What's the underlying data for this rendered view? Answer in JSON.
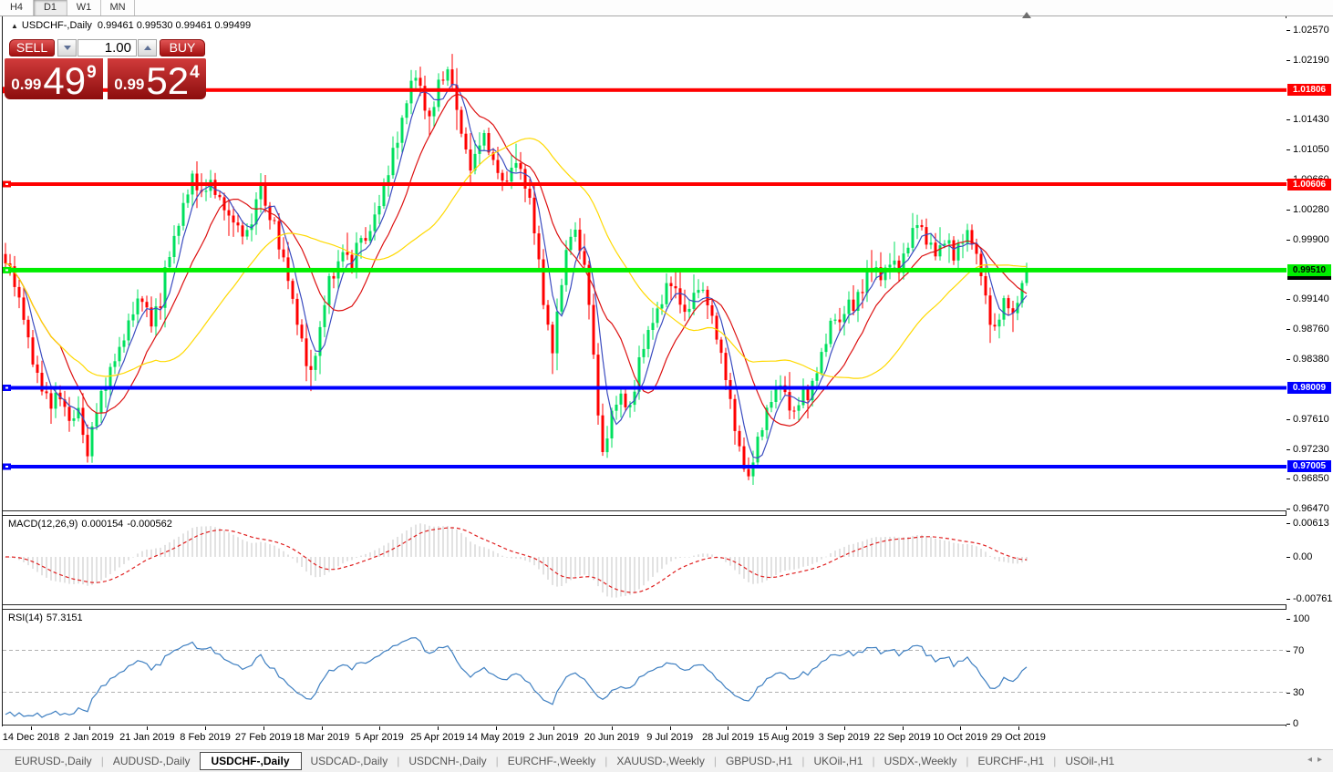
{
  "toolbar": {
    "timeframes": [
      "H4",
      "D1",
      "W1",
      "MN"
    ],
    "active": "D1"
  },
  "header": {
    "collapse_icon": "triangle",
    "symbol_line": "USDCHF-,Daily",
    "ohlc": "0.99461 0.99530 0.99461 0.99499"
  },
  "trade_panel": {
    "sell_label": "SELL",
    "buy_label": "BUY",
    "volume": "1.00",
    "sell_price_small": "0.99",
    "sell_price_big": "49",
    "sell_price_sup": "9",
    "buy_price_small": "0.99",
    "buy_price_big": "52",
    "buy_price_sup": "4"
  },
  "colors": {
    "bull": "#00e05e",
    "bear": "#ff0000",
    "ma_fast": "#3b4cc0",
    "ma_mid": "#dd1111",
    "ma_slow": "#ffd900",
    "hline_red": "#ff0000",
    "hline_green": "#00ee00",
    "hline_blue": "#0000ff",
    "macd_hist": "#c4c4c4",
    "macd_signal": "#e02020",
    "rsi_line": "#3e7fc1",
    "rsi_level": "#b0b0b0"
  },
  "chart_data": {
    "type": "candlestick",
    "symbol": "USDCHF-",
    "timeframe": "Daily",
    "bars": 225,
    "price_ticks": [
      "1.02570",
      "1.02190",
      "1.01430",
      "1.01050",
      "1.00660",
      "1.00280",
      "0.99900",
      "0.99140",
      "0.98760",
      "0.98380",
      "0.97610",
      "0.97230",
      "0.96850",
      "0.96470"
    ],
    "hlines": [
      {
        "price": "1.01806",
        "color_key": "hline_red",
        "text": "#ffffff",
        "thickness": 4
      },
      {
        "price": "1.00606",
        "color_key": "hline_red",
        "text": "#ffffff",
        "thickness": 4
      },
      {
        "price": "0.99510",
        "color_key": "hline_green",
        "text": "#000000",
        "thickness": 5
      },
      {
        "price": "0.98009",
        "color_key": "hline_blue",
        "text": "#ffffff",
        "thickness": 4
      },
      {
        "price": "0.97005",
        "color_key": "hline_blue",
        "text": "#ffffff",
        "thickness": 4
      }
    ],
    "bid_price": 0.99461,
    "moving_averages": [
      {
        "period": 5,
        "color_key": "ma_fast"
      },
      {
        "period": 13,
        "color_key": "ma_mid"
      },
      {
        "period": 34,
        "color_key": "ma_slow"
      }
    ],
    "close_anchors": [
      [
        0,
        0.9964
      ],
      [
        2,
        0.9935
      ],
      [
        4,
        0.9889
      ],
      [
        6,
        0.9836
      ],
      [
        8,
        0.9798
      ],
      [
        10,
        0.9778
      ],
      [
        12,
        0.9793
      ],
      [
        13,
        0.9775
      ],
      [
        15,
        0.9758
      ],
      [
        16,
        0.9778
      ],
      [
        17,
        0.974
      ],
      [
        18,
        0.9718
      ],
      [
        20,
        0.9775
      ],
      [
        22,
        0.9807
      ],
      [
        24,
        0.9836
      ],
      [
        26,
        0.9868
      ],
      [
        28,
        0.99
      ],
      [
        30,
        0.9918
      ],
      [
        32,
        0.9886
      ],
      [
        34,
        0.9912
      ],
      [
        35,
        0.9953
      ],
      [
        37,
        0.9991
      ],
      [
        39,
        1.003
      ],
      [
        41,
        1.0072
      ],
      [
        42,
        1.0057
      ],
      [
        43,
        1.0046
      ],
      [
        45,
        1.0065
      ],
      [
        47,
        1.0037
      ],
      [
        49,
        1.0016
      ],
      [
        51,
        1.0003
      ],
      [
        53,
        0.9996
      ],
      [
        54,
        1.0011
      ],
      [
        55,
        1.004
      ],
      [
        56,
        1.0063
      ],
      [
        57,
        1.0034
      ],
      [
        58,
        1.0019
      ],
      [
        60,
        0.9984
      ],
      [
        62,
        0.9941
      ],
      [
        64,
        0.9883
      ],
      [
        66,
        0.9831
      ],
      [
        67,
        0.9821
      ],
      [
        68,
        0.9848
      ],
      [
        69,
        0.9877
      ],
      [
        70,
        0.9912
      ],
      [
        71,
        0.9941
      ],
      [
        72,
        0.9947
      ],
      [
        73,
        0.9961
      ],
      [
        74,
        0.9976
      ],
      [
        75,
        0.9968
      ],
      [
        76,
        0.9958
      ],
      [
        77,
        0.9979
      ],
      [
        78,
        0.9993
      ],
      [
        79,
        0.9987
      ],
      [
        80,
        1.0003
      ],
      [
        81,
        1.0019
      ],
      [
        82,
        1.0037
      ],
      [
        83,
        1.0054
      ],
      [
        84,
        1.0077
      ],
      [
        85,
        1.0104
      ],
      [
        86,
        1.0119
      ],
      [
        87,
        1.0147
      ],
      [
        88,
        1.017
      ],
      [
        89,
        1.0188
      ],
      [
        90,
        1.0202
      ],
      [
        91,
        1.0181
      ],
      [
        92,
        1.0158
      ],
      [
        93,
        1.0142
      ],
      [
        94,
        1.0165
      ],
      [
        95,
        1.0185
      ],
      [
        96,
        1.0197
      ],
      [
        97,
        1.0205
      ],
      [
        98,
        1.0188
      ],
      [
        99,
        1.0154
      ],
      [
        100,
        1.013
      ],
      [
        101,
        1.0107
      ],
      [
        102,
        1.0084
      ],
      [
        103,
        1.0096
      ],
      [
        104,
        1.0115
      ],
      [
        105,
        1.0121
      ],
      [
        106,
        1.0106
      ],
      [
        107,
        1.0096
      ],
      [
        108,
        1.0078
      ],
      [
        109,
        1.0063
      ],
      [
        110,
        1.0069
      ],
      [
        111,
        1.008
      ],
      [
        112,
        1.0091
      ],
      [
        113,
        1.0078
      ],
      [
        114,
        1.0061
      ],
      [
        115,
        1.0037
      ],
      [
        116,
        1.0003
      ],
      [
        117,
        0.9958
      ],
      [
        118,
        0.9912
      ],
      [
        119,
        0.9877
      ],
      [
        120,
        0.9857
      ],
      [
        121,
        0.9894
      ],
      [
        122,
        0.9935
      ],
      [
        123,
        0.9972
      ],
      [
        124,
        0.9996
      ],
      [
        125,
        0.9999
      ],
      [
        126,
        0.9979
      ],
      [
        127,
        0.9956
      ],
      [
        128,
        0.9912
      ],
      [
        129,
        0.9842
      ],
      [
        130,
        0.9772
      ],
      [
        131,
        0.9714
      ],
      [
        132,
        0.9738
      ],
      [
        133,
        0.9767
      ],
      [
        134,
        0.9782
      ],
      [
        135,
        0.979
      ],
      [
        136,
        0.9782
      ],
      [
        137,
        0.9778
      ],
      [
        138,
        0.9807
      ],
      [
        140,
        0.9853
      ],
      [
        142,
        0.9888
      ],
      [
        144,
        0.9912
      ],
      [
        145,
        0.9929
      ],
      [
        146,
        0.9937
      ],
      [
        147,
        0.9926
      ],
      [
        148,
        0.9909
      ],
      [
        149,
        0.9896
      ],
      [
        150,
        0.9905
      ],
      [
        151,
        0.9921
      ],
      [
        152,
        0.993
      ],
      [
        153,
        0.9923
      ],
      [
        154,
        0.9909
      ],
      [
        155,
        0.9891
      ],
      [
        156,
        0.9865
      ],
      [
        157,
        0.984
      ],
      [
        158,
        0.9813
      ],
      [
        159,
        0.9784
      ],
      [
        160,
        0.9752
      ],
      [
        161,
        0.9724
      ],
      [
        162,
        0.97
      ],
      [
        163,
        0.9682
      ],
      [
        164,
        0.9709
      ],
      [
        165,
        0.9732
      ],
      [
        166,
        0.9752
      ],
      [
        167,
        0.977
      ],
      [
        168,
        0.9784
      ],
      [
        169,
        0.9798
      ],
      [
        170,
        0.981
      ],
      [
        171,
        0.9794
      ],
      [
        172,
        0.9775
      ],
      [
        173,
        0.9767
      ],
      [
        174,
        0.9782
      ],
      [
        175,
        0.9798
      ],
      [
        176,
        0.979
      ],
      [
        177,
        0.9807
      ],
      [
        178,
        0.9825
      ],
      [
        179,
        0.9842
      ],
      [
        180,
        0.9863
      ],
      [
        181,
        0.988
      ],
      [
        182,
        0.9892
      ],
      [
        183,
        0.9885
      ],
      [
        184,
        0.9898
      ],
      [
        185,
        0.9912
      ],
      [
        186,
        0.9903
      ],
      [
        187,
        0.9917
      ],
      [
        188,
        0.993
      ],
      [
        189,
        0.9947
      ],
      [
        190,
        0.9956
      ],
      [
        191,
        0.9951
      ],
      [
        192,
        0.994
      ],
      [
        193,
        0.9949
      ],
      [
        194,
        0.9963
      ],
      [
        195,
        0.9957
      ],
      [
        196,
        0.9951
      ],
      [
        197,
        0.9966
      ],
      [
        198,
        0.9981
      ],
      [
        199,
        0.9998
      ],
      [
        200,
        1.0015
      ],
      [
        201,
        1.0003
      ],
      [
        202,
        0.999
      ],
      [
        203,
        0.9981
      ],
      [
        204,
        0.9971
      ],
      [
        205,
        0.9981
      ],
      [
        206,
        0.999
      ],
      [
        207,
        0.9981
      ],
      [
        208,
        0.9969
      ],
      [
        209,
        0.9978
      ],
      [
        210,
        0.999
      ],
      [
        211,
        0.9998
      ],
      [
        212,
        0.9986
      ],
      [
        213,
        0.9969
      ],
      [
        214,
        0.9946
      ],
      [
        215,
        0.9912
      ],
      [
        216,
        0.9886
      ],
      [
        217,
        0.9875
      ],
      [
        218,
        0.9891
      ],
      [
        219,
        0.9912
      ],
      [
        220,
        0.9906
      ],
      [
        221,
        0.9894
      ],
      [
        222,
        0.9912
      ],
      [
        223,
        0.9933
      ],
      [
        224,
        0.9949
      ]
    ],
    "date_labels": [
      "14 Dec 2018",
      "2 Jan 2019",
      "21 Jan 2019",
      "8 Feb 2019",
      "27 Feb 2019",
      "18 Mar 2019",
      "5 Apr 2019",
      "25 Apr 2019",
      "14 May 2019",
      "2 Jun 2019",
      "20 Jun 2019",
      "9 Jul 2019",
      "28 Jul 2019",
      "15 Aug 2019",
      "3 Sep 2019",
      "22 Sep 2019",
      "10 Oct 2019",
      "29 Oct 2019"
    ],
    "macd": {
      "label": "MACD(12,26,9)",
      "value": "0.000154",
      "signal_value": "-0.000562",
      "ticks": [
        {
          "text": "0.00613",
          "value": 0.00613
        },
        {
          "text": "0.00",
          "value": 0
        },
        {
          "text": "-0.007612",
          "value": -0.007612
        }
      ]
    },
    "rsi": {
      "label": "RSI(14)",
      "value": "57.3151",
      "ticks": [
        {
          "text": "100",
          "value": 100
        },
        {
          "text": "70",
          "value": 70
        },
        {
          "text": "30",
          "value": 30
        },
        {
          "text": "0",
          "value": 0
        }
      ],
      "levels": [
        70,
        30
      ]
    }
  },
  "tabs": {
    "items": [
      "EURUSD-,Daily",
      "AUDUSD-,Daily",
      "USDCHF-,Daily",
      "USDCAD-,Daily",
      "USDCNH-,Daily",
      "EURCHF-,Weekly",
      "XAUUSD-,Weekly",
      "GBPUSD-,H1",
      "UKOil-,H1",
      "USDX-,Weekly",
      "EURCHF-,H1",
      "USOil-,H1"
    ],
    "active_index": 2
  }
}
